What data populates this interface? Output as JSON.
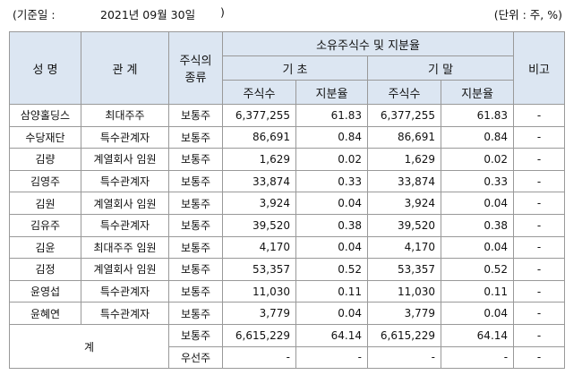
{
  "header": {
    "date_label": "(기준일 :",
    "date": "2021년 09월 30일",
    "date_close": ")",
    "unit": "(단위 : 주, %)"
  },
  "table": {
    "columns": {
      "name": "성 명",
      "relation": "관 계",
      "stock_type": [
        "주식의",
        "종류"
      ],
      "group": "소유주식수 및 지분율",
      "begin": "기 초",
      "end": "기 말",
      "shares_begin": "주식수",
      "ratio_begin": "지분율",
      "shares_end": "주식수",
      "ratio_end": "지분율",
      "note": "비고"
    },
    "rows": [
      [
        "삼양홀딩스",
        "최대주주",
        "보통주",
        "6,377,255",
        "61.83",
        "6,377,255",
        "61.83",
        "-"
      ],
      [
        "수당재단",
        "특수관계자",
        "보통주",
        "86,691",
        "0.84",
        "86,691",
        "0.84",
        "-"
      ],
      [
        "김량",
        "계열회사 임원",
        "보통주",
        "1,629",
        "0.02",
        "1,629",
        "0.02",
        "-"
      ],
      [
        "김영주",
        "특수관계자",
        "보통주",
        "33,874",
        "0.33",
        "33,874",
        "0.33",
        "-"
      ],
      [
        "김원",
        "계열회사 임원",
        "보통주",
        "3,924",
        "0.04",
        "3,924",
        "0.04",
        "-"
      ],
      [
        "김유주",
        "특수관계자",
        "보통주",
        "39,520",
        "0.38",
        "39,520",
        "0.38",
        "-"
      ],
      [
        "김윤",
        "최대주주 임원",
        "보통주",
        "4,170",
        "0.04",
        "4,170",
        "0.04",
        "-"
      ],
      [
        "김정",
        "계열회사 임원",
        "보통주",
        "53,357",
        "0.52",
        "53,357",
        "0.52",
        "-"
      ],
      [
        "윤영섭",
        "특수관계자",
        "보통주",
        "11,030",
        "0.11",
        "11,030",
        "0.11",
        "-"
      ],
      [
        "윤혜연",
        "특수관계자",
        "보통주",
        "3,779",
        "0.04",
        "3,779",
        "0.04",
        "-"
      ]
    ],
    "total": {
      "label": "계",
      "rows": [
        [
          "보통주",
          "6,615,229",
          "64.14",
          "6,615,229",
          "64.14",
          "-"
        ],
        [
          "우선주",
          "-",
          "-",
          "-",
          "-",
          "-"
        ]
      ]
    }
  }
}
